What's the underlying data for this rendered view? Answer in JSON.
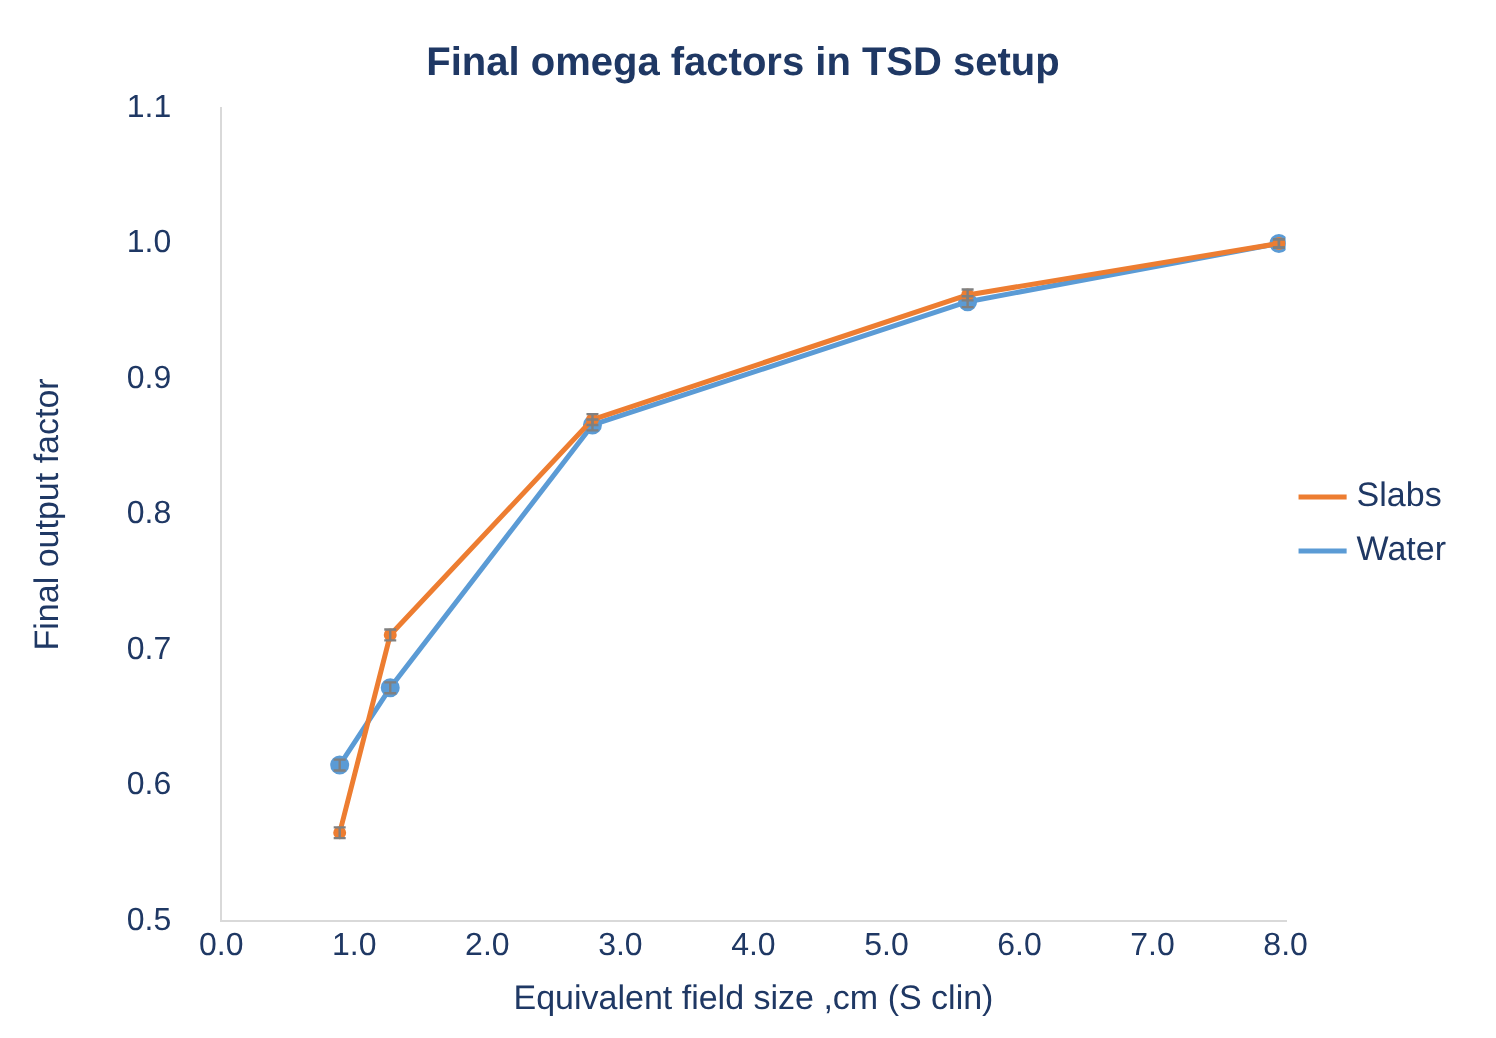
{
  "chart_data": {
    "type": "line",
    "title": "Final omega factors in TSD setup",
    "xlabel": "Equivalent field size ,cm (S clin)",
    "ylabel": "Final output factor",
    "xlim": [
      0,
      8
    ],
    "xticks": [
      {
        "value": 0,
        "label": "0.0"
      },
      {
        "value": 1,
        "label": "1.0"
      },
      {
        "value": 2,
        "label": "2.0"
      },
      {
        "value": 3,
        "label": "3.0"
      },
      {
        "value": 4,
        "label": "4.0"
      },
      {
        "value": 5,
        "label": "5.0"
      },
      {
        "value": 6,
        "label": "6.0"
      },
      {
        "value": 7,
        "label": "7.0"
      },
      {
        "value": 8,
        "label": "8.0"
      }
    ],
    "ylim": [
      0.5,
      1.1
    ],
    "yticks": [
      0.5,
      0.6,
      0.7,
      0.8,
      0.9,
      {
        "value": 1,
        "label": "1.0"
      },
      1.1
    ],
    "x": [
      0.89,
      1.27,
      2.79,
      5.61,
      7.95
    ],
    "series": [
      {
        "name": "Water",
        "color": "#5b9bd5",
        "values": [
          0.615,
          0.672,
          0.866,
          0.957,
          1.0
        ],
        "errors": [
          0.004,
          0.004,
          0.004,
          0.004,
          0.003
        ]
      },
      {
        "name": "Slabs",
        "color": "#ed7d31",
        "values": [
          0.565,
          0.711,
          0.87,
          0.962,
          1.0
        ],
        "errors": [
          0.004,
          0.004,
          0.004,
          0.004,
          0.003
        ]
      }
    ],
    "grid": false,
    "legend": "right",
    "marker": "circle",
    "line_style": "solid"
  }
}
